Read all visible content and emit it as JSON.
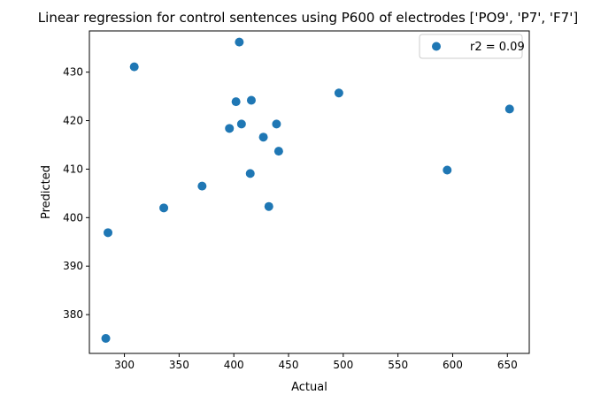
{
  "chart_data": {
    "type": "scatter",
    "title": "Linear regression for control sentences using P600 of electrodes ['PO9', 'P7', 'F7']",
    "xlabel": "Actual",
    "ylabel": "Predicted",
    "xlim": [
      268,
      670
    ],
    "ylim": [
      372,
      438.5
    ],
    "xticks": [
      300,
      350,
      400,
      450,
      500,
      550,
      600,
      650
    ],
    "yticks": [
      380,
      390,
      400,
      410,
      420,
      430
    ],
    "grid": false,
    "legend_position": "top-right",
    "series": [
      {
        "name": "r2 = 0.09",
        "color": "#1f77b4",
        "points": [
          {
            "x": 283,
            "y": 375.1
          },
          {
            "x": 285,
            "y": 396.9
          },
          {
            "x": 309,
            "y": 431.1
          },
          {
            "x": 336,
            "y": 402.0
          },
          {
            "x": 371,
            "y": 406.5
          },
          {
            "x": 396,
            "y": 418.4
          },
          {
            "x": 402,
            "y": 423.9
          },
          {
            "x": 405,
            "y": 436.2
          },
          {
            "x": 407,
            "y": 419.3
          },
          {
            "x": 415,
            "y": 409.1
          },
          {
            "x": 416,
            "y": 424.2
          },
          {
            "x": 427,
            "y": 416.6
          },
          {
            "x": 432,
            "y": 402.3
          },
          {
            "x": 439,
            "y": 419.3
          },
          {
            "x": 441,
            "y": 413.7
          },
          {
            "x": 496,
            "y": 425.7
          },
          {
            "x": 595,
            "y": 409.8
          },
          {
            "x": 652,
            "y": 422.4
          }
        ]
      }
    ]
  }
}
